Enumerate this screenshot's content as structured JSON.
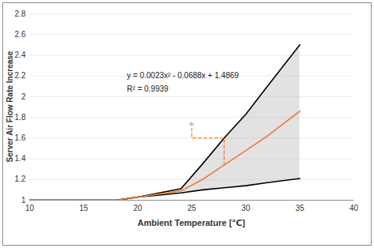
{
  "chart_data": {
    "type": "line",
    "xlabel": "Ambient Temperature [℃]",
    "ylabel": "Server Air Flow Rate Increase",
    "x": [
      10,
      18,
      20,
      22,
      24,
      26,
      28,
      30,
      32,
      35
    ],
    "series": [
      {
        "color": "#000000",
        "values": [
          1,
          1,
          1.03,
          1.07,
          1.11,
          1.35,
          1.6,
          1.83,
          2.1,
          2.5
        ]
      },
      {
        "color": "#000000",
        "values": [
          1,
          1,
          1.03,
          1.05,
          1.07,
          1.1,
          1.12,
          1.14,
          1.17,
          1.21
        ]
      },
      {
        "color": "#ed7d31",
        "values": [
          1,
          1,
          1.03,
          1.06,
          1.09,
          1.2,
          1.34,
          1.48,
          1.62,
          1.86
        ]
      }
    ],
    "xlim": [
      10,
      40
    ],
    "xticks": [
      10,
      15,
      20,
      25,
      30,
      35,
      40
    ],
    "ylim": [
      1,
      2.8
    ],
    "yticks": [
      1,
      1.2,
      1.4,
      1.6,
      1.8,
      2,
      2.2,
      2.4,
      2.6,
      2.8
    ],
    "grid": true,
    "annotations": [
      {
        "text": "y = 0.0023x² - 0.0688x + 1.4869",
        "x": 19,
        "y": 2.2
      },
      {
        "text": "R² = 0.9939",
        "x": 19,
        "y": 2.07,
        "arrow": [
          [
            28,
            1.34
          ],
          [
            28,
            1.6
          ],
          [
            25,
            1.6
          ],
          [
            25,
            1.74
          ]
        ]
      }
    ]
  }
}
